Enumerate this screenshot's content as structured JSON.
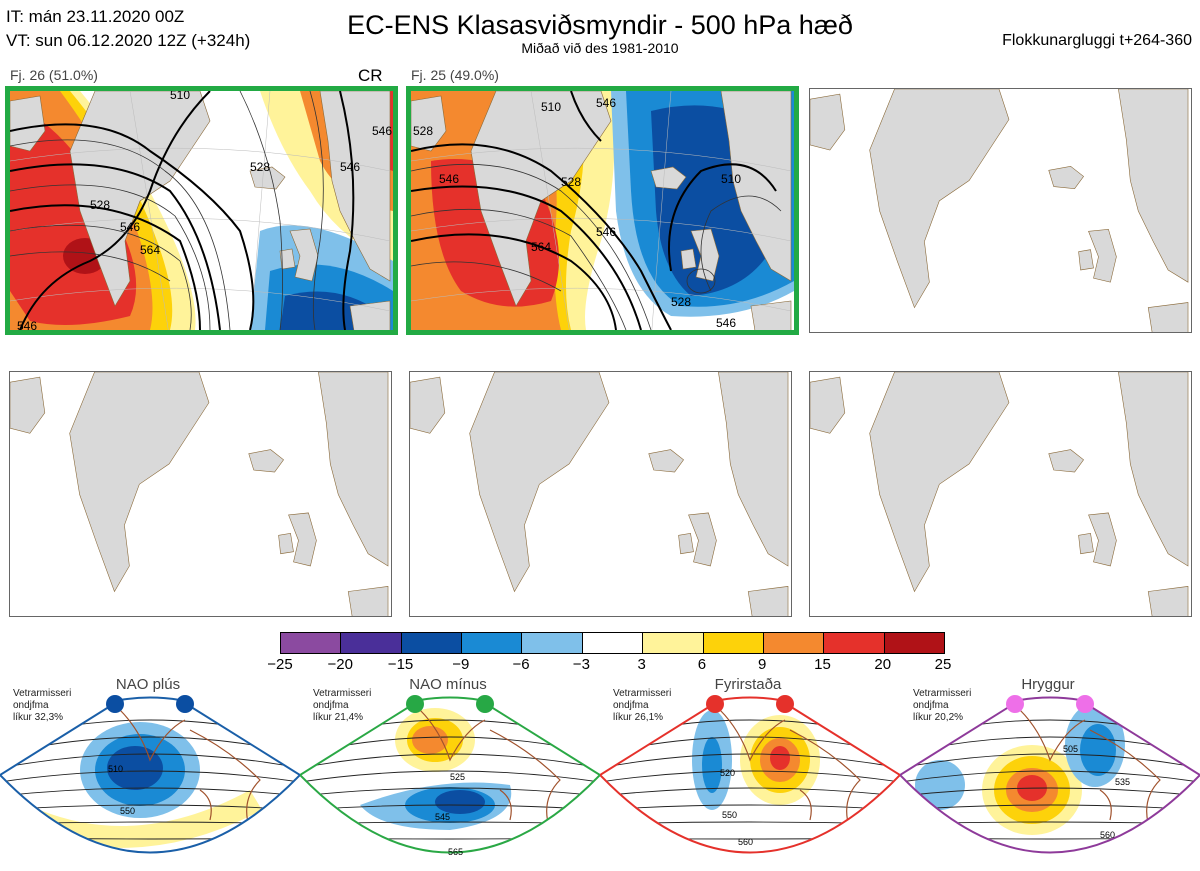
{
  "header": {
    "it_line": "IT: mán 23.11.2020 00Z",
    "vt_line": "VT: sun 06.12.2020 12Z  (+324h)",
    "title": "EC-ENS Klasasviðsmyndir - 500 hPa hæð",
    "subtitle": "Miðað við des 1981-2010",
    "window": "Flokkunargluggi t+264-360"
  },
  "clusters": [
    {
      "label": "Fj. 26 (51.0%)",
      "tag": "CR",
      "contours": [
        "510",
        "528",
        "546",
        "564",
        "546",
        "528",
        "546",
        "546"
      ]
    },
    {
      "label": "Fj. 25 (49.0%)",
      "tag": "",
      "contours": [
        "528",
        "510",
        "546",
        "528",
        "546",
        "564",
        "546",
        "510",
        "528",
        "546"
      ]
    }
  ],
  "colorbar": {
    "ticks": [
      "−25",
      "−20",
      "−15",
      "−9",
      "−6",
      "−3",
      "3",
      "6",
      "9",
      "15",
      "20",
      "25"
    ],
    "colors": [
      "#8b4aa0",
      "#4a2f99",
      "#0b4ea2",
      "#1a8ad4",
      "#7fc0ea",
      "#ffffff",
      "#fff39a",
      "#fdd20a",
      "#f4892f",
      "#e5312b",
      "#b01217"
    ]
  },
  "regimes": [
    {
      "name": "NAO plús",
      "season": "Vetrarmisseri",
      "level": "ondjfma",
      "prob": "líkur 32,3%",
      "contours": [
        "510",
        "550"
      ],
      "dot_color": "#0b4ea2",
      "frame_color": "#1a5fa8"
    },
    {
      "name": "NAO mínus",
      "season": "Vetrarmisseri",
      "level": "ondjfma",
      "prob": "líkur 21,4%",
      "contours": [
        "525",
        "545",
        "565"
      ],
      "dot_color": "#27a845",
      "frame_color": "#2aa845"
    },
    {
      "name": "Fyrirstaða",
      "season": "Vetrarmisseri",
      "level": "ondjfma",
      "prob": "líkur 26,1%",
      "contours": [
        "520",
        "550",
        "560"
      ],
      "dot_color": "#e5312b",
      "frame_color": "#e5312b"
    },
    {
      "name": "Hryggur",
      "season": "Vetrarmisseri",
      "level": "ondjfma",
      "prob": "líkur 20,2%",
      "contours": [
        "505",
        "535",
        "560"
      ],
      "dot_color": "#ee6fe8",
      "frame_color": "#8e3a9a"
    }
  ]
}
